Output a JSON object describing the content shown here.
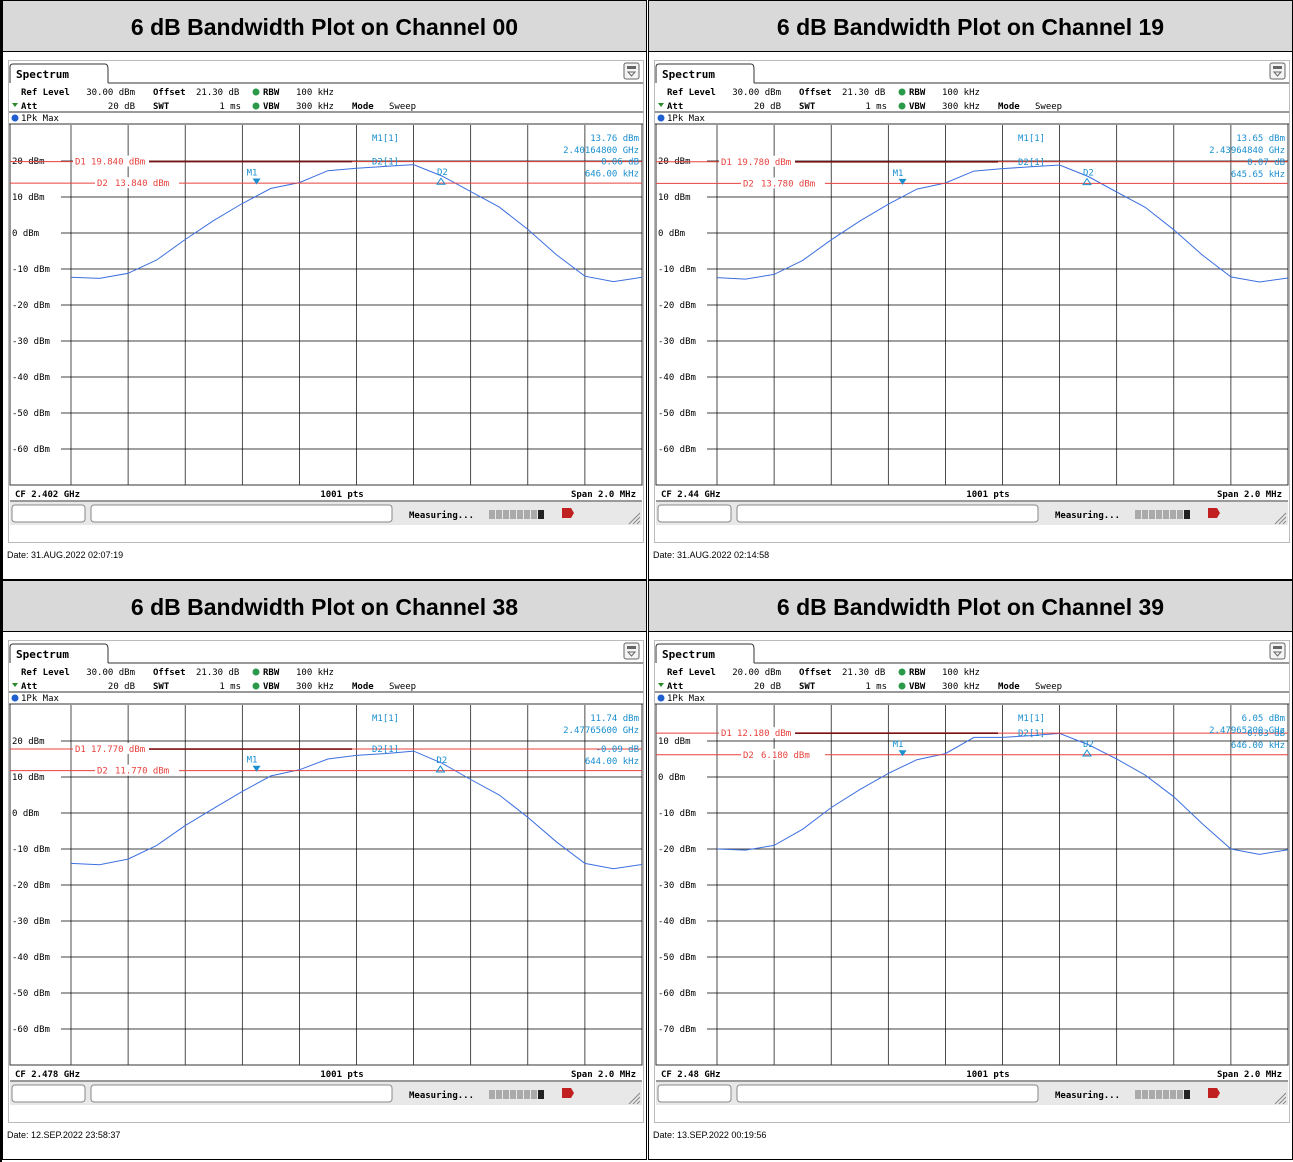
{
  "panels": [
    {
      "title": "6 dB Bandwidth Plot on Channel 00",
      "tab": "Spectrum",
      "settings": {
        "ref_level_label": "Ref Level",
        "ref_level": "30.00 dBm",
        "att_label": "Att",
        "att": "20 dB",
        "offset_label": "Offset",
        "offset": "21.30 dB",
        "swt_label": "SWT",
        "swt": "1 ms",
        "rbw_label": "RBW",
        "rbw": "100 kHz",
        "vbw_label": "VBW",
        "vbw": "300 kHz",
        "mode_label": "Mode",
        "mode": "Sweep"
      },
      "trace_label": "1Pk Max",
      "markers": {
        "m1_label": "M1[1]",
        "m1_level": "13.76 dBm",
        "m1_freq": "2.40164800 GHz",
        "d2_label": "D2[1]",
        "d2_level": "0.06 dB",
        "d2_freq": "646.00 kHz"
      },
      "lines": {
        "d1_label": "D1",
        "d1": "19.840 dBm",
        "d2_label": "D2",
        "d2": "13.840 dBm"
      },
      "footer": {
        "cf": "CF 2.402 GHz",
        "pts": "1001 pts",
        "span": "Span 2.0 MHz"
      },
      "status": "Measuring...",
      "date": "Date: 31.AUG.2022  02:07:19"
    },
    {
      "title": "6 dB Bandwidth Plot on Channel 19",
      "tab": "Spectrum",
      "settings": {
        "ref_level_label": "Ref Level",
        "ref_level": "30.00 dBm",
        "att_label": "Att",
        "att": "20 dB",
        "offset_label": "Offset",
        "offset": "21.30 dB",
        "swt_label": "SWT",
        "swt": "1 ms",
        "rbw_label": "RBW",
        "rbw": "100 kHz",
        "vbw_label": "VBW",
        "vbw": "300 kHz",
        "mode_label": "Mode",
        "mode": "Sweep"
      },
      "trace_label": "1Pk Max",
      "markers": {
        "m1_label": "M1[1]",
        "m1_level": "13.65 dBm",
        "m1_freq": "2.43964840 GHz",
        "d2_label": "D2[1]",
        "d2_level": "0.07 dB",
        "d2_freq": "645.65 kHz"
      },
      "lines": {
        "d1_label": "D1",
        "d1": "19.780 dBm",
        "d2_label": "D2",
        "d2": "13.780 dBm"
      },
      "footer": {
        "cf": "CF 2.44 GHz",
        "pts": "1001 pts",
        "span": "Span 2.0 MHz"
      },
      "status": "Measuring...",
      "date": "Date: 31.AUG.2022  02:14:58"
    },
    {
      "title": "6 dB Bandwidth Plot on Channel 38",
      "tab": "Spectrum",
      "settings": {
        "ref_level_label": "Ref Level",
        "ref_level": "30.00 dBm",
        "att_label": "Att",
        "att": "20 dB",
        "offset_label": "Offset",
        "offset": "21.30 dB",
        "swt_label": "SWT",
        "swt": "1 ms",
        "rbw_label": "RBW",
        "rbw": "100 kHz",
        "vbw_label": "VBW",
        "vbw": "300 kHz",
        "mode_label": "Mode",
        "mode": "Sweep"
      },
      "trace_label": "1Pk Max",
      "markers": {
        "m1_label": "M1[1]",
        "m1_level": "11.74 dBm",
        "m1_freq": "2.47765600 GHz",
        "d2_label": "D2[1]",
        "d2_level": "-0.09 dB",
        "d2_freq": "644.00 kHz"
      },
      "lines": {
        "d1_label": "D1",
        "d1": "17.770 dBm",
        "d2_label": "D2",
        "d2": "11.770 dBm"
      },
      "footer": {
        "cf": "CF 2.478 GHz",
        "pts": "1001 pts",
        "span": "Span 2.0 MHz"
      },
      "status": "Measuring...",
      "date": "Date: 12.SEP.2022  23:58:37"
    },
    {
      "title": "6 dB Bandwidth Plot on Channel 39",
      "tab": "Spectrum",
      "settings": {
        "ref_level_label": "Ref Level",
        "ref_level": "20.00 dBm",
        "att_label": "Att",
        "att": "20 dB",
        "offset_label": "Offset",
        "offset": "21.30 dB",
        "swt_label": "SWT",
        "swt": "1 ms",
        "rbw_label": "RBW",
        "rbw": "100 kHz",
        "vbw_label": "VBW",
        "vbw": "300 kHz",
        "mode_label": "Mode",
        "mode": "Sweep"
      },
      "trace_label": "1Pk Max",
      "markers": {
        "m1_label": "M1[1]",
        "m1_level": "6.05 dBm",
        "m1_freq": "2.47965200 GHz",
        "d2_label": "D2[1]",
        "d2_level": "0.03 dB",
        "d2_freq": "646.00 kHz"
      },
      "lines": {
        "d1_label": "D1",
        "d1": "12.180 dBm",
        "d2_label": "D2",
        "d2": "6.180 dBm"
      },
      "footer": {
        "cf": "CF 2.48 GHz",
        "pts": "1001 pts",
        "span": "Span 2.0 MHz"
      },
      "status": "Measuring...",
      "date": "Date: 13.SEP.2022  00:19:56"
    }
  ],
  "colors": {
    "trace": "#3c6fe0",
    "limit_line": "#e8413c",
    "marker": "#1a8fd0",
    "ref_line": "#7a1010",
    "grid": "#000000"
  },
  "chart_data": [
    {
      "type": "line",
      "ylim": [
        -70,
        30
      ],
      "yticks": [
        "20 dBm",
        "10 dBm",
        "0 dBm",
        "-10 dBm",
        "-20 dBm",
        "-30 dBm",
        "-40 dBm",
        "-50 dBm",
        "-60 dBm"
      ],
      "ytick_values": [
        20,
        10,
        0,
        -10,
        -20,
        -30,
        -40,
        -50,
        -60
      ],
      "x_offset_mhz": [
        -1.0,
        -0.9,
        -0.8,
        -0.7,
        -0.6,
        -0.5,
        -0.4,
        -0.3,
        -0.2,
        -0.1,
        0.0,
        0.1,
        0.2,
        0.3,
        0.4,
        0.5,
        0.6,
        0.7,
        0.8,
        0.9,
        1.0
      ],
      "y": [
        -12.3,
        -12.6,
        -11.2,
        -7.5,
        -1.8,
        3.5,
        8.2,
        12.4,
        14.0,
        17.3,
        18.0,
        18.5,
        19.0,
        15.8,
        11.5,
        7.2,
        1.0,
        -6.0,
        -12.0,
        -13.5,
        -12.3
      ],
      "d1": 19.84,
      "d2": 13.84,
      "m1": {
        "x": -0.35,
        "y": 13.76
      },
      "d2_marker": {
        "x": 0.296,
        "y": 13.82
      }
    },
    {
      "type": "line",
      "ylim": [
        -70,
        30
      ],
      "yticks": [
        "20 dBm",
        "10 dBm",
        "0 dBm",
        "-10 dBm",
        "-20 dBm",
        "-30 dBm",
        "-40 dBm",
        "-50 dBm",
        "-60 dBm"
      ],
      "ytick_values": [
        20,
        10,
        0,
        -10,
        -20,
        -30,
        -40,
        -50,
        -60
      ],
      "x_offset_mhz": [
        -1.0,
        -0.9,
        -0.8,
        -0.7,
        -0.6,
        -0.5,
        -0.4,
        -0.3,
        -0.2,
        -0.1,
        0.0,
        0.1,
        0.2,
        0.3,
        0.4,
        0.5,
        0.6,
        0.7,
        0.8,
        0.9,
        1.0
      ],
      "y": [
        -12.4,
        -12.8,
        -11.5,
        -7.6,
        -1.9,
        3.3,
        8.0,
        12.2,
        13.9,
        17.2,
        17.9,
        18.4,
        18.9,
        15.7,
        11.4,
        7.1,
        0.9,
        -6.1,
        -12.2,
        -13.6,
        -12.5
      ],
      "d1": 19.78,
      "d2": 13.78,
      "m1": {
        "x": -0.35,
        "y": 13.65
      },
      "d2_marker": {
        "x": 0.296,
        "y": 13.72
      }
    },
    {
      "type": "line",
      "ylim": [
        -70,
        30
      ],
      "yticks": [
        "20 dBm",
        "10 dBm",
        "0 dBm",
        "-10 dBm",
        "-20 dBm",
        "-30 dBm",
        "-40 dBm",
        "-50 dBm",
        "-60 dBm"
      ],
      "ytick_values": [
        20,
        10,
        0,
        -10,
        -20,
        -30,
        -40,
        -50,
        -60
      ],
      "x_offset_mhz": [
        -1.0,
        -0.9,
        -0.8,
        -0.7,
        -0.6,
        -0.5,
        -0.4,
        -0.3,
        -0.2,
        -0.1,
        0.0,
        0.1,
        0.2,
        0.3,
        0.4,
        0.5,
        0.6,
        0.7,
        0.8,
        0.9,
        1.0
      ],
      "y": [
        -14.0,
        -14.4,
        -12.8,
        -9.0,
        -3.5,
        1.3,
        6.0,
        10.3,
        12.0,
        15.0,
        16.0,
        16.5,
        17.2,
        13.8,
        9.3,
        5.0,
        -1.2,
        -8.0,
        -14.0,
        -15.5,
        -14.3
      ],
      "d1": 17.77,
      "d2": 11.77,
      "m1": {
        "x": -0.35,
        "y": 11.74
      },
      "d2_marker": {
        "x": 0.294,
        "y": 11.65
      }
    },
    {
      "type": "line",
      "ylim": [
        -80,
        20
      ],
      "yticks": [
        "10 dBm",
        "0 dBm",
        "-10 dBm",
        "-20 dBm",
        "-30 dBm",
        "-40 dBm",
        "-50 dBm",
        "-60 dBm",
        "-70 dBm"
      ],
      "ytick_values": [
        10,
        0,
        -10,
        -20,
        -30,
        -40,
        -50,
        -60,
        -70
      ],
      "x_offset_mhz": [
        -1.0,
        -0.9,
        -0.8,
        -0.7,
        -0.6,
        -0.5,
        -0.4,
        -0.3,
        -0.2,
        -0.1,
        0.0,
        0.1,
        0.2,
        0.3,
        0.4,
        0.5,
        0.6,
        0.7,
        0.8,
        0.9,
        1.0
      ],
      "y": [
        -20.0,
        -20.3,
        -19.0,
        -14.5,
        -8.5,
        -3.5,
        1.0,
        4.8,
        6.5,
        11.0,
        11.0,
        11.5,
        12.1,
        9.0,
        5.0,
        0.5,
        -5.5,
        -13.0,
        -20.0,
        -21.5,
        -20.2
      ],
      "d1": 12.18,
      "d2": 6.18,
      "m1": {
        "x": -0.35,
        "y": 6.05
      },
      "d2_marker": {
        "x": 0.296,
        "y": 6.12
      }
    }
  ]
}
